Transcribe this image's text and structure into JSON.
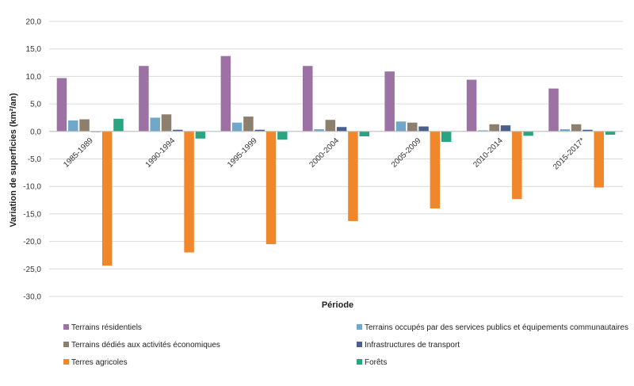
{
  "chart_data": {
    "type": "bar",
    "title": "",
    "xlabel": "Période",
    "ylabel": "Variation de superficies (km²/an)",
    "ylim": [
      -30,
      20
    ],
    "yticks": [
      "20,0",
      "15,0",
      "10,0",
      "5,0",
      "0,0",
      "-5,0",
      "-10,0",
      "-15,0",
      "-20,0",
      "-25,0",
      "-30,0"
    ],
    "grid": true,
    "legend_position": "bottom",
    "categories": [
      "1985-1989",
      "1990-1994",
      "1995-1999",
      "2000-2004",
      "2005-2009",
      "2010-2014",
      "2015-2017*"
    ],
    "series": [
      {
        "name": "Terrains résidentiels",
        "color": "#9b72a3",
        "values": [
          9.7,
          11.9,
          13.7,
          11.9,
          10.9,
          9.4,
          7.8
        ]
      },
      {
        "name": "Terrains occupés par des services publics et équipements communautaires",
        "color": "#6fa8c8",
        "values": [
          2.0,
          2.5,
          1.6,
          0.4,
          1.8,
          0.2,
          0.4
        ]
      },
      {
        "name": "Terrains dédiés aux activités économiques",
        "color": "#8d7f6e",
        "values": [
          2.2,
          3.1,
          2.7,
          2.1,
          1.6,
          1.3,
          1.3
        ]
      },
      {
        "name": "Infrastructures de transport",
        "color": "#4a5f8c",
        "values": [
          -0.1,
          0.3,
          0.3,
          0.8,
          0.9,
          1.1,
          0.3
        ]
      },
      {
        "name": "Terres agricoles",
        "color": "#f0872a",
        "values": [
          -24.4,
          -22.0,
          -20.5,
          -16.3,
          -14.0,
          -12.3,
          -10.2
        ]
      },
      {
        "name": "Forêts",
        "color": "#2aa582",
        "values": [
          2.3,
          -1.3,
          -1.5,
          -0.9,
          -1.9,
          -0.8,
          -0.6
        ]
      }
    ]
  }
}
